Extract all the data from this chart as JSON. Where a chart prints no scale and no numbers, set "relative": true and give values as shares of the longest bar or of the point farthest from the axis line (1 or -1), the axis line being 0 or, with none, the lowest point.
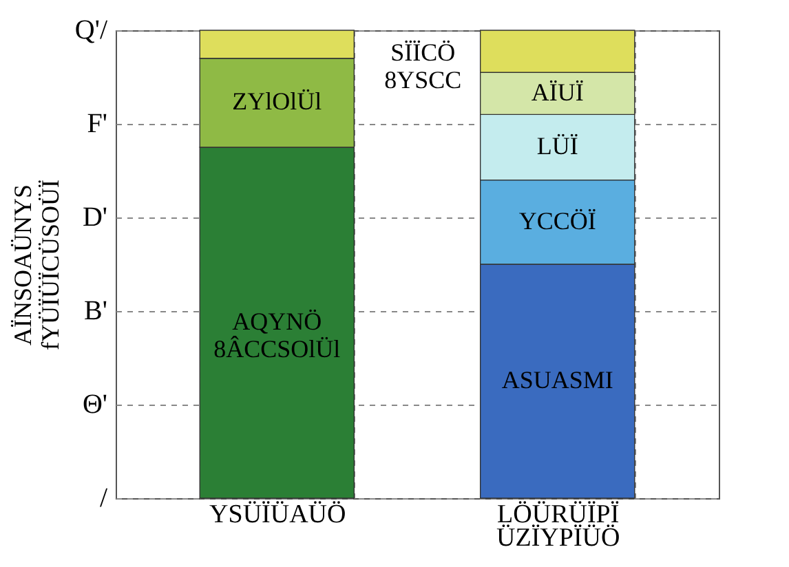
{
  "chart_data": {
    "type": "bar",
    "stacked": true,
    "relative": true,
    "ylabel": "AÏNSOAÜNYS\nfYÜÏÜÏCÜSOÜÏ",
    "categories": [
      "YSÜÏÜAÜÖ",
      "LÖÜRÜÏPÏ\nÜZÏYPÏÜÖ"
    ],
    "annotations": [
      "/",
      "Θ'",
      "B'",
      "D'",
      "F'",
      "Q'/"
    ],
    "grid": true,
    "series": [
      {
        "name": "AQYNÖ\n8ÂCCSOlÜl",
        "color": "#2b7f35",
        "values": [
          0.75,
          null
        ]
      },
      {
        "name": "ZYlOlÜl",
        "color": "#8fba45",
        "values": [
          0.19,
          null
        ]
      },
      {
        "name": "ASUASMI",
        "color": "#3a6bbf",
        "values": [
          null,
          0.5
        ]
      },
      {
        "name": "YCCÖÏ",
        "color": "#5aaee0",
        "values": [
          null,
          0.18
        ]
      },
      {
        "name": "LÜÏ",
        "color": "#c4ecee",
        "values": [
          null,
          0.14
        ]
      },
      {
        "name": "AÏUÏ",
        "color": "#d4e6a8",
        "values": [
          null,
          0.09
        ]
      },
      {
        "name": "SÏÏCÖ\n8YSCC",
        "color": "#dede5c",
        "values": [
          0.06,
          0.09
        ]
      }
    ]
  }
}
